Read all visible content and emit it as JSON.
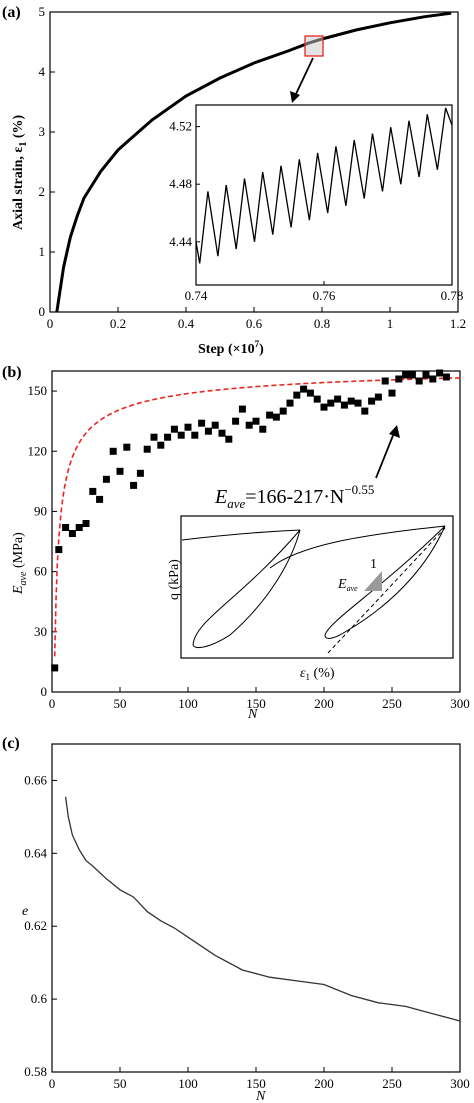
{
  "chart_data": [
    {
      "panel": "(a)",
      "type": "line",
      "xlabel": "Step (×10",
      "xlabel_exp": "7",
      "xlabel_end": ")",
      "ylabel": "Axial strain, ε",
      "ylabel_sub": "1",
      "ylabel_unit": " (%)",
      "xlim": [
        0,
        1.2
      ],
      "ylim": [
        0,
        5
      ],
      "xticks": [
        "0",
        "0.2",
        "0.4",
        "0.6",
        "0.8",
        "1",
        "1.2"
      ],
      "yticks": [
        "0",
        "1",
        "2",
        "3",
        "4",
        "5"
      ],
      "series": [
        {
          "x": [
            0.02,
            0.04,
            0.06,
            0.08,
            0.1,
            0.15,
            0.2,
            0.3,
            0.4,
            0.5,
            0.6,
            0.7,
            0.76,
            0.8,
            0.9,
            1.0,
            1.1,
            1.18
          ],
          "y": [
            0.0,
            0.75,
            1.25,
            1.6,
            1.9,
            2.35,
            2.7,
            3.2,
            3.6,
            3.9,
            4.15,
            4.35,
            4.48,
            4.55,
            4.7,
            4.82,
            4.92,
            4.98
          ]
        }
      ],
      "inset": {
        "type": "line",
        "xlim": [
          0.74,
          0.78
        ],
        "ylim": [
          4.41,
          4.535
        ],
        "xticks": [
          "0.74",
          "0.76",
          "0.78"
        ],
        "yticks": [
          "4.44",
          "4.48",
          "4.52"
        ],
        "cycles": 14,
        "valley_start": 4.425,
        "valley_end": 4.49,
        "peak_start": 4.475,
        "peak_end": 4.533
      }
    },
    {
      "panel": "(b)",
      "type": "scatter",
      "xlabel": "N",
      "ylabel": "E",
      "ylabel_sub": "ave",
      "ylabel_unit": " (MPa)",
      "xlim": [
        0,
        300
      ],
      "ylim": [
        0,
        160
      ],
      "xticks": [
        "0",
        "50",
        "100",
        "150",
        "200",
        "250",
        "300"
      ],
      "yticks": [
        "0",
        "30",
        "60",
        "90",
        "120",
        "150"
      ],
      "series": [
        {
          "x": [
            2,
            5,
            10,
            15,
            20,
            25,
            30,
            35,
            40,
            45,
            50,
            55,
            60,
            65,
            70,
            75,
            80,
            85,
            90,
            95,
            100,
            105,
            110,
            115,
            120,
            125,
            130,
            135,
            140,
            145,
            150,
            155,
            160,
            165,
            170,
            175,
            180,
            185,
            190,
            195,
            200,
            205,
            210,
            215,
            220,
            225,
            230,
            235,
            240,
            245,
            250,
            255,
            260,
            265,
            270,
            275,
            280,
            285,
            290
          ],
          "y": [
            12,
            71,
            82,
            79,
            82,
            84,
            100,
            96,
            106,
            120,
            110,
            122,
            103,
            109,
            121,
            127,
            123,
            127,
            131,
            128,
            132,
            128,
            134,
            130,
            133,
            129,
            126,
            135,
            141,
            133,
            135,
            131,
            138,
            137,
            140,
            144,
            148,
            151,
            149,
            146,
            142,
            144,
            146,
            143,
            145,
            144,
            140,
            145,
            147,
            155,
            149,
            156,
            158,
            158,
            155,
            158,
            156,
            159,
            157
          ]
        }
      ],
      "fit": {
        "label_main": "=166-217·N",
        "label_var": "E",
        "label_sub": "ave",
        "label_exp": "−0.55",
        "a": 166,
        "b": 217,
        "c": -0.55,
        "color": "#e8261f"
      },
      "inset": {
        "xlabel": "ε",
        "xlabel_sub": "1",
        "xlabel_unit": " (%)",
        "ylabel": "q (kPa)",
        "triangle_label": "1",
        "triangle_var": "E",
        "triangle_sub": "ave"
      }
    },
    {
      "panel": "(c)",
      "type": "line",
      "xlabel": "N",
      "ylabel": "e",
      "xlim": [
        0,
        300
      ],
      "ylim": [
        0.58,
        0.67
      ],
      "xticks": [
        "0",
        "50",
        "100",
        "150",
        "200",
        "250",
        "300"
      ],
      "yticks": [
        "0.58",
        "0.6",
        "0.62",
        "0.64",
        "0.66"
      ],
      "series": [
        {
          "x": [
            10,
            12,
            15,
            20,
            25,
            30,
            40,
            50,
            60,
            70,
            80,
            90,
            100,
            120,
            140,
            160,
            180,
            200,
            220,
            240,
            260,
            280,
            300
          ],
          "y": [
            0.6555,
            0.65,
            0.645,
            0.641,
            0.638,
            0.6365,
            0.633,
            0.63,
            0.628,
            0.624,
            0.6215,
            0.6195,
            0.617,
            0.612,
            0.608,
            0.606,
            0.605,
            0.604,
            0.601,
            0.599,
            0.598,
            0.596,
            0.594
          ]
        }
      ]
    }
  ]
}
